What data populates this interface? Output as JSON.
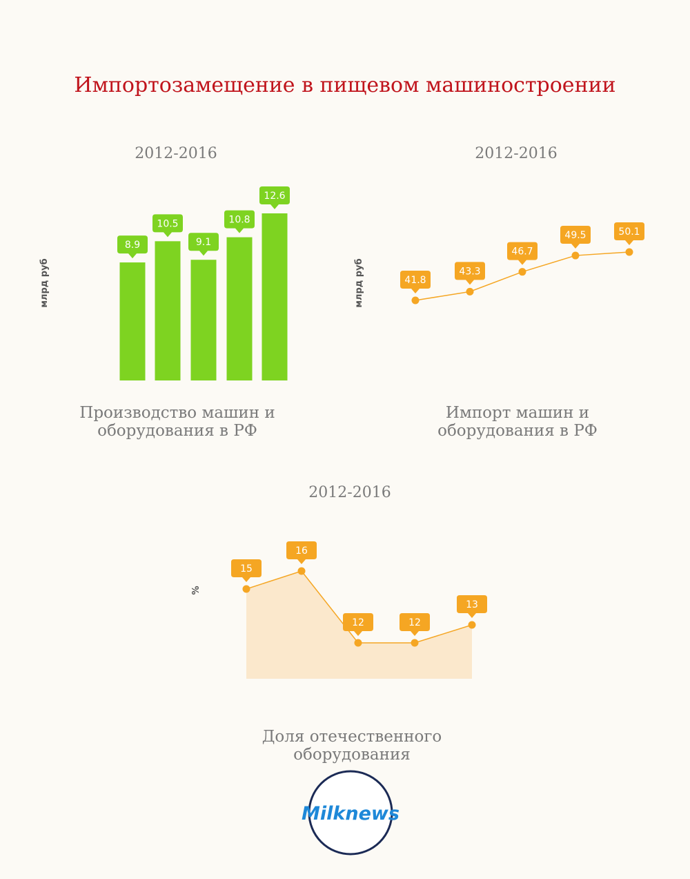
{
  "title": "Импортозамещение в пищевом машиностроении",
  "chart_data": [
    {
      "type": "bar",
      "subtitle": "2012-2016",
      "ylabel": "млрд руб",
      "caption": "Производство машин и оборудования в РФ",
      "values": [
        8.9,
        10.5,
        9.1,
        10.8,
        12.6
      ],
      "color": "#7ed321"
    },
    {
      "type": "line",
      "subtitle": "2012-2016",
      "ylabel": "млрд руб",
      "caption": "Импорт машин и оборудования в РФ",
      "values": [
        41.8,
        43.3,
        46.7,
        49.5,
        50.1
      ],
      "color": "#f5a623"
    },
    {
      "type": "area",
      "subtitle": "2012-2016",
      "ylabel": "%",
      "caption": "Доля отечественного оборудования",
      "values": [
        15,
        16,
        12,
        12,
        13
      ],
      "color": "#f5a623",
      "fill": "#fbe8cc"
    }
  ],
  "logo": "Milknews"
}
